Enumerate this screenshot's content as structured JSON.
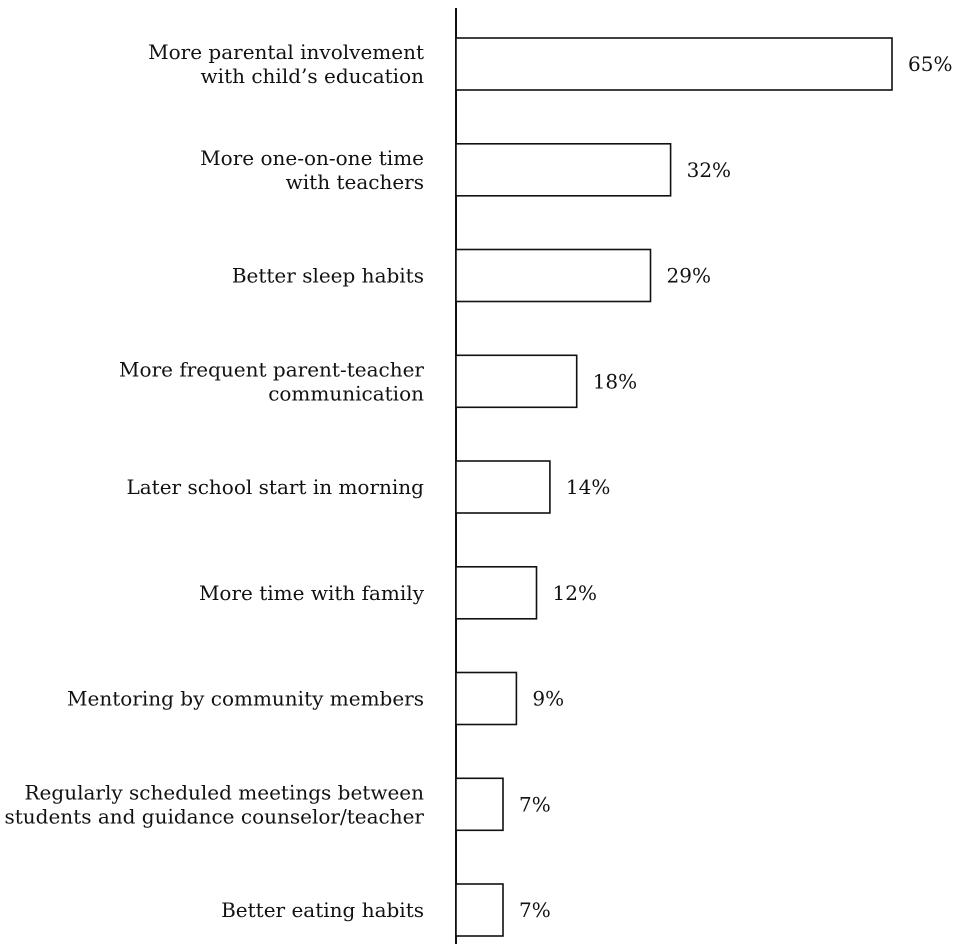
{
  "chart_data": {
    "type": "bar",
    "orientation": "horizontal",
    "categories": [
      [
        "More parental involvement",
        "with child’s education"
      ],
      [
        "More one-on-one time",
        "with teachers"
      ],
      [
        "Better sleep habits"
      ],
      [
        "More frequent parent-teacher",
        "communication"
      ],
      [
        "Later school start in morning"
      ],
      [
        "More time with family"
      ],
      [
        "Mentoring by community members"
      ],
      [
        "Regularly scheduled meetings between",
        "students and guidance counselor/teacher"
      ],
      [
        "Better eating habits"
      ]
    ],
    "values": [
      65,
      32,
      29,
      18,
      14,
      12,
      9,
      7,
      7
    ],
    "value_labels": [
      "65%",
      "32%",
      "29%",
      "18%",
      "14%",
      "12%",
      "9%",
      "7%",
      "7%"
    ],
    "unit": "%",
    "xlim": [
      0,
      65
    ],
    "grid": false,
    "legend": "none",
    "colors": {
      "bar_fill": "#ffffff",
      "bar_stroke": "#111111",
      "axis": "#111111",
      "text": "#111111"
    }
  }
}
